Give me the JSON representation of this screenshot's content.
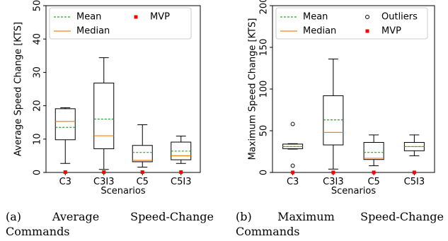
{
  "chart_data": [
    {
      "type": "box",
      "caption": "(a) Average Speed-Change Commands",
      "xlabel": "Scenarios",
      "ylabel": "Average Speed Change [KTS]",
      "ylim": [
        0,
        50
      ],
      "yticks": [
        0,
        10,
        20,
        30,
        40,
        50
      ],
      "categories": [
        "C3",
        "C3I3",
        "C5",
        "C5I3"
      ],
      "legend": {
        "placement": "top",
        "entries": [
          {
            "label": "Mean",
            "style": "dashed-line",
            "color": "#2ca02c"
          },
          {
            "label": "MVP",
            "style": "square-marker",
            "color": "#ff0000"
          },
          {
            "label": "Median",
            "style": "solid-line",
            "color": "#ff7f0e"
          }
        ]
      },
      "boxes": [
        {
          "category": "C3",
          "whisker_low": 2.7,
          "q1": 9.8,
          "median": 15.3,
          "mean": 13.5,
          "q3": 19.1,
          "whisker_high": 19.4,
          "outliers": [],
          "mvp": 0.1
        },
        {
          "category": "C3I3",
          "whisker_low": 0.9,
          "q1": 7.1,
          "median": 11.0,
          "mean": 16.0,
          "q3": 26.8,
          "whisker_high": 34.4,
          "outliers": [],
          "mvp": 0.1
        },
        {
          "category": "C5",
          "whisker_low": 1.6,
          "q1": 3.2,
          "median": 3.6,
          "mean": 6.0,
          "q3": 8.1,
          "whisker_high": 14.3,
          "outliers": [],
          "mvp": 0.1
        },
        {
          "category": "C5I3",
          "whisker_low": 2.7,
          "q1": 3.8,
          "median": 5.0,
          "mean": 6.4,
          "q3": 9.1,
          "whisker_high": 10.9,
          "outliers": [],
          "mvp": 0.1
        }
      ]
    },
    {
      "type": "box",
      "caption": "(b) Maximum Speed-Change Commands",
      "xlabel": "Scenarios",
      "ylabel": "Maximum Speed Change [KTS]",
      "ylim": [
        0,
        200
      ],
      "yticks": [
        0,
        50,
        100,
        150,
        200
      ],
      "categories": [
        "C3",
        "C3I3",
        "C5",
        "C5I3"
      ],
      "legend": {
        "placement": "top",
        "entries": [
          {
            "label": "Mean",
            "style": "dashed-line",
            "color": "#2ca02c"
          },
          {
            "label": "Outliers",
            "style": "open-circle",
            "color": "#000000"
          },
          {
            "label": "Median",
            "style": "solid-line",
            "color": "#ff7f0e"
          },
          {
            "label": "MVP",
            "style": "square-marker",
            "color": "#ff0000"
          }
        ]
      },
      "boxes": [
        {
          "category": "C3",
          "whisker_low": 28,
          "q1": 28.5,
          "median": 31,
          "mean": 31,
          "q3": 34,
          "whisker_high": 34.5,
          "outliers": [
            58,
            8
          ],
          "mvp": 0.1
        },
        {
          "category": "C3I3",
          "whisker_low": 4,
          "q1": 33,
          "median": 48,
          "mean": 63,
          "q3": 92,
          "whisker_high": 136,
          "outliers": [],
          "mvp": 0.1
        },
        {
          "category": "C5",
          "whisker_low": 8,
          "q1": 15.5,
          "median": 17,
          "mean": 24,
          "q3": 36,
          "whisker_high": 45,
          "outliers": [],
          "mvp": 0.1
        },
        {
          "category": "C5I3",
          "whisker_low": 20,
          "q1": 26,
          "median": 31,
          "mean": 31,
          "q3": 36,
          "whisker_high": 45,
          "outliers": [],
          "mvp": 0.1
        }
      ]
    }
  ],
  "colors": {
    "mean": "#2ca02c",
    "median": "#ff7f0e",
    "mvp": "#ff0000",
    "box": "#000000"
  }
}
